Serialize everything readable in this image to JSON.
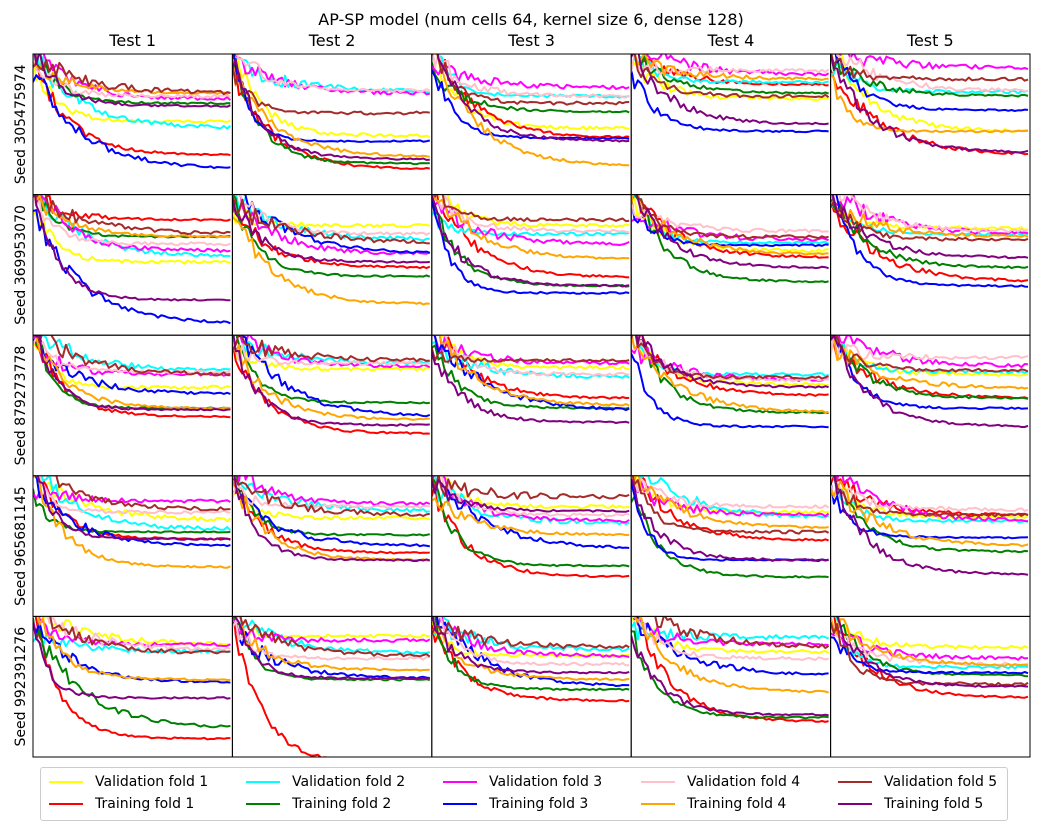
{
  "chart_data": {
    "type": "line",
    "title": "AP-SP model (num cells 64, kernel size 6, dense 128)",
    "columns": [
      "Test 1",
      "Test 2",
      "Test 3",
      "Test 4",
      "Test 5"
    ],
    "rows": [
      "Seed 305475974",
      "Seed 369953070",
      "Seed 879273778",
      "Seed 965681145",
      "Seed 992391276"
    ],
    "axes": {
      "xticks": false,
      "yticks": false,
      "grid": false
    },
    "legend_position": "bottom",
    "series": [
      {
        "name": "Validation fold 1",
        "color": "#ffff00"
      },
      {
        "name": "Training fold 1",
        "color": "#ff0000"
      },
      {
        "name": "Validation fold 2",
        "color": "#00ffff"
      },
      {
        "name": "Training fold 2",
        "color": "#008000"
      },
      {
        "name": "Validation fold 3",
        "color": "#ff00ff"
      },
      {
        "name": "Training fold 3",
        "color": "#0000ff"
      },
      {
        "name": "Validation fold 4",
        "color": "#ffc0cb"
      },
      {
        "name": "Training fold 4",
        "color": "#ffa500"
      },
      {
        "name": "Validation fold 5",
        "color": "#a52a2a"
      },
      {
        "name": "Training fold 5",
        "color": "#800080"
      }
    ],
    "levels": [
      [
        [
          0.52,
          0.28,
          0.47,
          0.65,
          0.68,
          0.18,
          0.7,
          0.72,
          0.72,
          0.63
        ],
        [
          0.42,
          0.18,
          0.73,
          0.22,
          0.72,
          0.38,
          0.74,
          0.27,
          0.58,
          0.25
        ],
        [
          0.47,
          0.4,
          0.7,
          0.59,
          0.76,
          0.4,
          0.7,
          0.2,
          0.65,
          0.38
        ],
        [
          0.68,
          0.78,
          0.8,
          0.72,
          0.85,
          0.45,
          0.88,
          0.82,
          0.7,
          0.5
        ],
        [
          0.45,
          0.28,
          0.73,
          0.7,
          0.9,
          0.6,
          0.74,
          0.45,
          0.82,
          0.3
        ]
      ],
      [
        [
          0.52,
          0.82,
          0.56,
          0.7,
          0.6,
          0.08,
          0.65,
          0.7,
          0.72,
          0.25
        ],
        [
          0.78,
          0.48,
          0.68,
          0.42,
          0.58,
          0.58,
          0.72,
          0.22,
          0.66,
          0.52
        ],
        [
          0.78,
          0.41,
          0.72,
          0.35,
          0.65,
          0.3,
          0.74,
          0.54,
          0.82,
          0.35
        ],
        [
          0.6,
          0.55,
          0.66,
          0.38,
          0.68,
          0.64,
          0.74,
          0.57,
          0.7,
          0.48
        ],
        [
          0.76,
          0.38,
          0.72,
          0.48,
          0.72,
          0.35,
          0.74,
          0.7,
          0.68,
          0.55
        ]
      ],
      [
        [
          0.63,
          0.42,
          0.75,
          0.48,
          0.72,
          0.58,
          0.74,
          0.48,
          0.72,
          0.47
        ],
        [
          0.76,
          0.3,
          0.8,
          0.52,
          0.78,
          0.42,
          0.8,
          0.4,
          0.82,
          0.36
        ],
        [
          0.77,
          0.55,
          0.7,
          0.48,
          0.8,
          0.46,
          0.72,
          0.5,
          0.82,
          0.38
        ],
        [
          0.65,
          0.57,
          0.72,
          0.45,
          0.68,
          0.35,
          0.68,
          0.45,
          0.7,
          0.63
        ],
        [
          0.72,
          0.55,
          0.74,
          0.55,
          0.78,
          0.48,
          0.84,
          0.62,
          0.75,
          0.35
        ]
      ],
      [
        [
          0.68,
          0.55,
          0.62,
          0.6,
          0.82,
          0.5,
          0.74,
          0.35,
          0.76,
          0.55
        ],
        [
          0.7,
          0.45,
          0.75,
          0.58,
          0.8,
          0.5,
          0.78,
          0.4,
          0.72,
          0.4
        ],
        [
          0.78,
          0.28,
          0.66,
          0.36,
          0.68,
          0.48,
          0.72,
          0.58,
          0.85,
          0.75
        ],
        [
          0.74,
          0.54,
          0.7,
          0.28,
          0.72,
          0.4,
          0.78,
          0.63,
          0.6,
          0.4
        ],
        [
          0.7,
          0.72,
          0.68,
          0.46,
          0.68,
          0.56,
          0.76,
          0.5,
          0.72,
          0.3
        ]
      ],
      [
        [
          0.8,
          0.13,
          0.75,
          0.2,
          0.8,
          0.53,
          0.76,
          0.55,
          0.74,
          0.42
        ],
        [
          0.86,
          -0.05,
          0.74,
          0.55,
          0.83,
          0.56,
          0.7,
          0.62,
          0.72,
          0.56
        ],
        [
          0.72,
          0.4,
          0.76,
          0.48,
          0.72,
          0.5,
          0.66,
          0.55,
          0.78,
          0.6
        ],
        [
          0.75,
          0.25,
          0.85,
          0.28,
          0.8,
          0.58,
          0.7,
          0.46,
          0.78,
          0.3
        ],
        [
          0.78,
          0.42,
          0.64,
          0.58,
          0.7,
          0.6,
          0.66,
          0.65,
          0.52,
          0.5
        ]
      ]
    ]
  }
}
